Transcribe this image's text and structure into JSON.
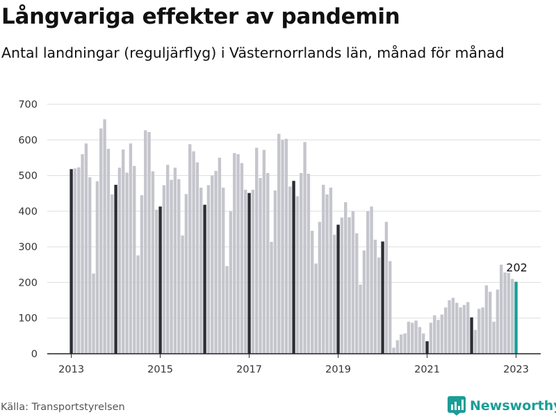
{
  "title": "Långvariga effekter av pandemin",
  "subtitle": "Antal landningar (reguljärflyg) i Västernorrlands län, månad för månad",
  "source": "Källa: Transportstyrelsen",
  "logo": {
    "text": "Newsworthy",
    "icon": "newsworthy-chart-icon",
    "color": "#1a9e96"
  },
  "colors": {
    "bar": "#c5c5cd",
    "january": "#2d2d36",
    "latest": "#1a9e96",
    "grid": "#dddddd"
  },
  "chart_data": {
    "type": "bar",
    "title": "Långvariga effekter av pandemin",
    "subtitle": "Antal landningar (reguljärflyg) i Västernorrlands län, månad för månad",
    "x_start": "2013-01",
    "x_ticks": [
      "2013",
      "2015",
      "2017",
      "2019",
      "2021",
      "2023"
    ],
    "ylim": [
      0,
      700
    ],
    "y_ticks": [
      0,
      100,
      200,
      300,
      400,
      500,
      600,
      700
    ],
    "grid": true,
    "highlight": "januari markeras mörkt; senaste månaden markeras i grönt",
    "end_label": "202",
    "values": [
      518,
      520,
      523,
      560,
      590,
      495,
      225,
      484,
      632,
      658,
      575,
      447,
      474,
      522,
      573,
      508,
      590,
      527,
      276,
      445,
      627,
      622,
      512,
      404,
      413,
      473,
      530,
      488,
      522,
      490,
      332,
      448,
      588,
      568,
      537,
      466,
      418,
      473,
      500,
      513,
      550,
      466,
      246,
      400,
      563,
      560,
      535,
      460,
      451,
      460,
      578,
      493,
      572,
      507,
      314,
      458,
      617,
      600,
      603,
      469,
      485,
      442,
      507,
      594,
      505,
      345,
      253,
      370,
      474,
      447,
      466,
      334,
      362,
      382,
      425,
      383,
      400,
      338,
      194,
      290,
      400,
      413,
      320,
      270,
      315,
      370,
      260,
      17,
      38,
      54,
      57,
      90,
      87,
      93,
      75,
      57,
      35,
      87,
      108,
      95,
      110,
      130,
      150,
      157,
      143,
      130,
      137,
      145,
      102,
      67,
      126,
      130,
      192,
      174,
      90,
      180,
      250,
      228,
      227,
      210,
      202
    ]
  }
}
